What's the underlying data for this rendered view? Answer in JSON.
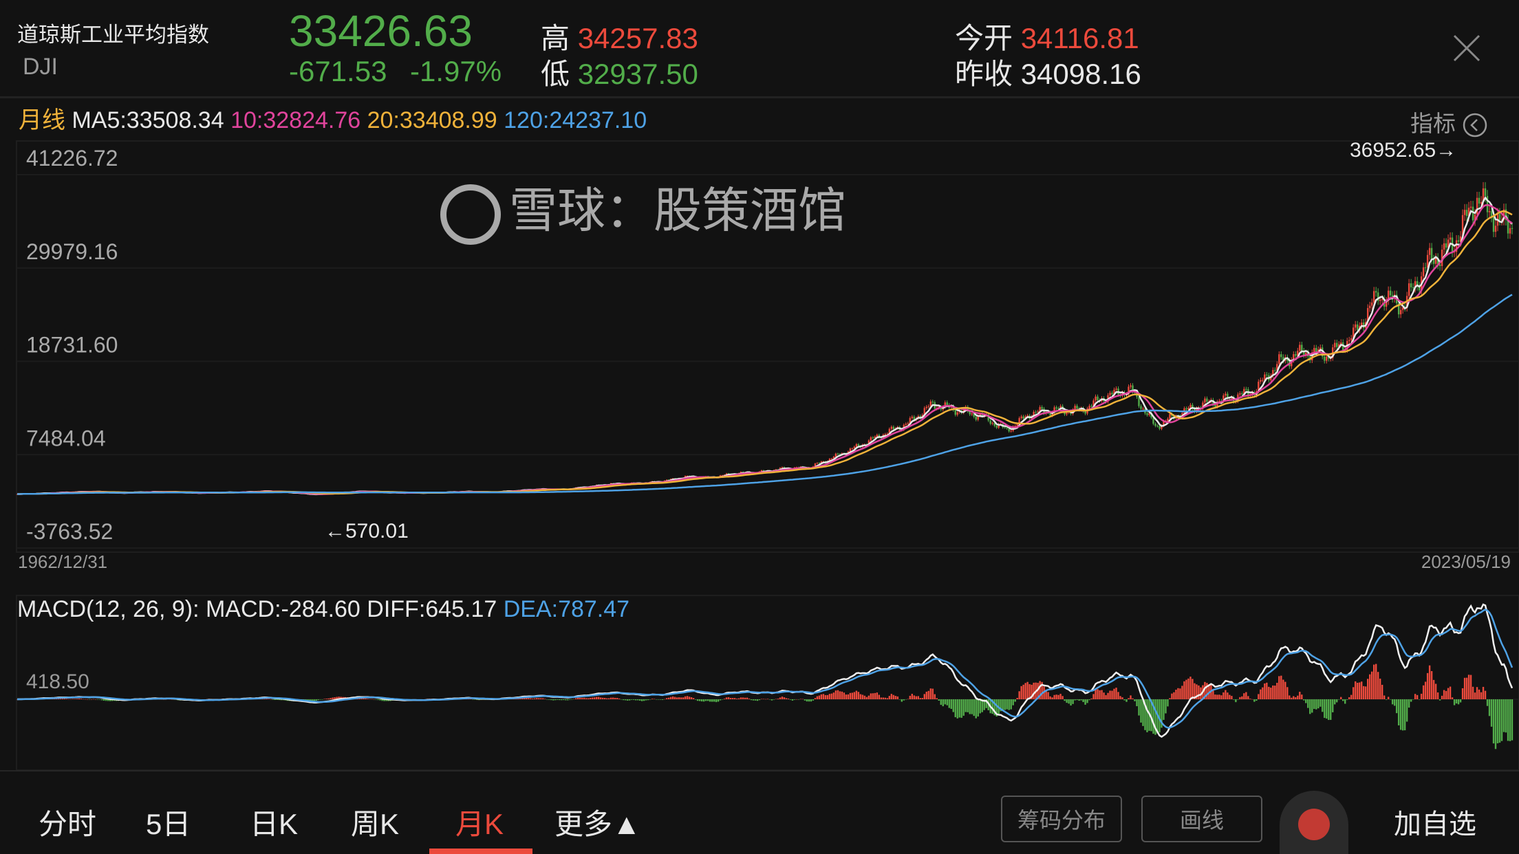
{
  "header": {
    "name": "道琼斯工业平均指数",
    "symbol": "DJI",
    "price": "33426.63",
    "change": "-671.53",
    "change_pct": "-1.97%",
    "high_label": "高",
    "high": "34257.83",
    "low_label": "低",
    "low": "32937.50",
    "open_label": "今开",
    "open": "34116.81",
    "prev_close_label": "昨收",
    "prev_close": "34098.16",
    "close_icon": "close-icon"
  },
  "ma_row": {
    "period": "月线",
    "ma5": "MA5:33508.34",
    "ma10": "10:32824.76",
    "ma20": "20:33408.99",
    "ma120": "120:24237.10",
    "indicator_label": "指标",
    "indicator_icon": "chevron-left-circle-icon"
  },
  "colors": {
    "up": "#ec4a3c",
    "down": "#52ad4a",
    "ma5": "#e8e8e8",
    "ma10": "#e0449c",
    "ma20": "#f0b23a",
    "ma120": "#4ea2e6",
    "background": "#121212"
  },
  "chart_data": {
    "type": "candlestick",
    "y_ticks": [
      "41226.72",
      "29979.16",
      "18731.60",
      "7484.04",
      "-3763.52"
    ],
    "ylim": [
      -3763.52,
      41226.72
    ],
    "x_start": "1962/12/31",
    "x_end": "2023/05/19",
    "max_annotation": "36952.65→",
    "min_annotation": "←570.01",
    "yearly_close_years": [
      1962,
      2023
    ],
    "yearly_close": [
      652,
      763,
      874,
      969,
      786,
      905,
      944,
      800,
      839,
      890,
      1020,
      851,
      616,
      852,
      1005,
      831,
      805,
      839,
      964,
      875,
      1047,
      1259,
      1212,
      1547,
      1896,
      1939,
      2169,
      2753,
      2634,
      3169,
      3301,
      3754,
      3834,
      5117,
      6448,
      7908,
      9181,
      11497,
      10787,
      10022,
      8342,
      10454,
      10783,
      10718,
      12463,
      13265,
      8776,
      10428,
      11578,
      12218,
      13104,
      16577,
      17823,
      17425,
      19763,
      24719,
      23327,
      28538,
      30606,
      36338,
      33147,
      33426
    ],
    "ma_periods": [
      5,
      10,
      20,
      120
    ],
    "macd": {
      "title": "MACD(12, 26, 9): MACD:-284.60 DIFF:645.17 ",
      "dea": "DEA:787.47",
      "tick": "418.50",
      "params": [
        12,
        26,
        9
      ]
    }
  },
  "tabs": [
    {
      "label": "分时"
    },
    {
      "label": "5日"
    },
    {
      "label": "日K"
    },
    {
      "label": "周K"
    },
    {
      "label": "月K",
      "active": true
    },
    {
      "label": "更多▲"
    }
  ],
  "actions": {
    "chips": "筹码分布",
    "draw": "画线",
    "add": "加自选"
  },
  "watermark": "雪球：股策酒馆"
}
